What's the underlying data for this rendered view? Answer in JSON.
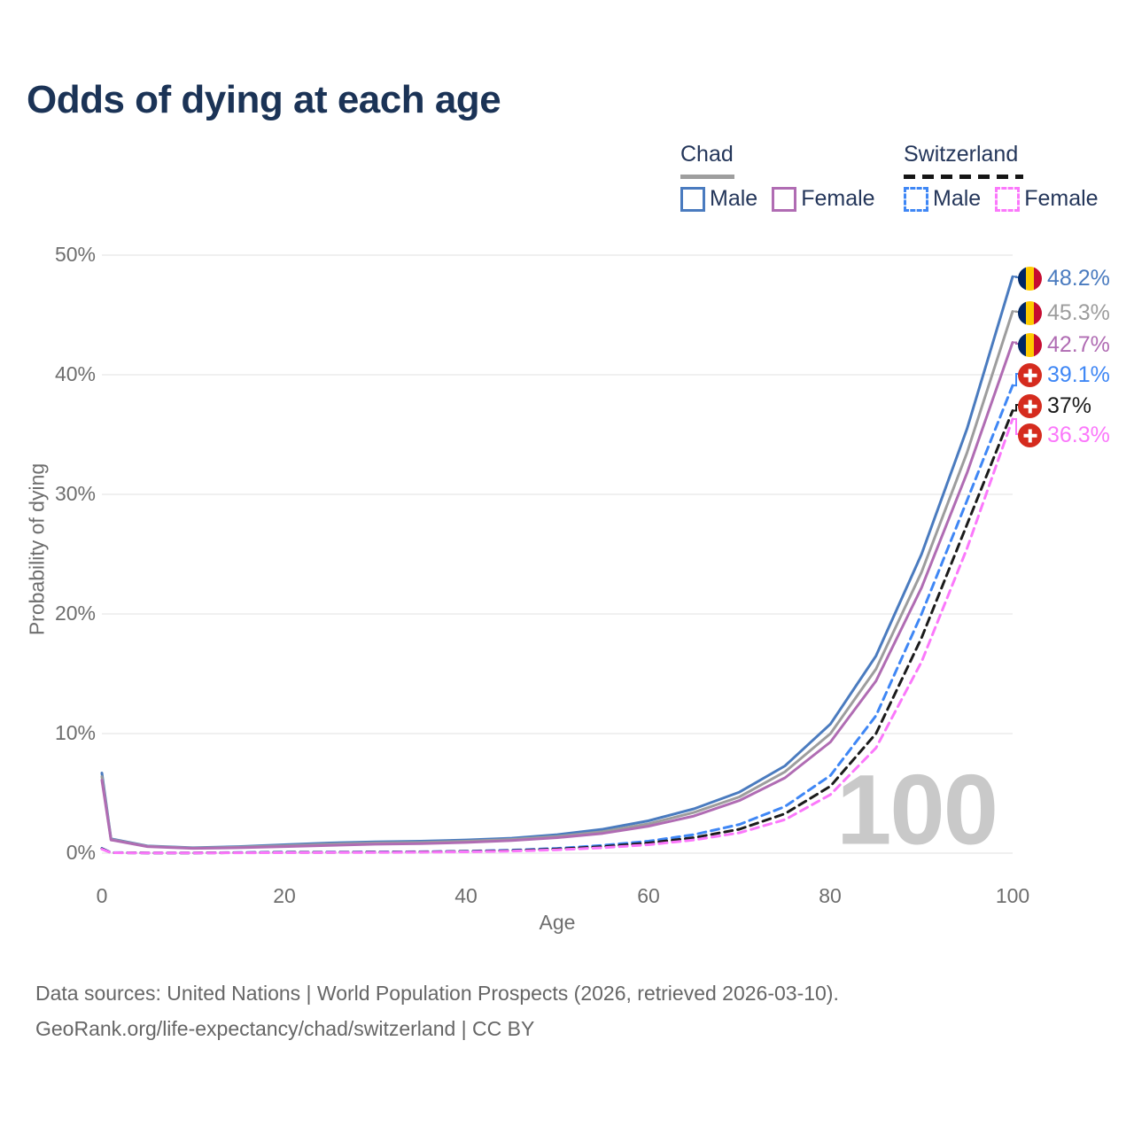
{
  "title": "Odds of dying at each age",
  "legend": {
    "groups": [
      {
        "label": "Chad",
        "line_style": "solid",
        "underline_color": "#9e9e9e",
        "items": [
          {
            "label": "Male",
            "color": "#4a7bbf",
            "dashed": false
          },
          {
            "label": "Female",
            "color": "#b06cb3",
            "dashed": false
          }
        ]
      },
      {
        "label": "Switzerland",
        "line_style": "dashed",
        "underline_color": "#151515",
        "items": [
          {
            "label": "Male",
            "color": "#3f87f5",
            "dashed": true
          },
          {
            "label": "Female",
            "color": "#fb78fb",
            "dashed": true
          }
        ]
      }
    ]
  },
  "chart_data": {
    "type": "line",
    "title": "Odds of dying at each age",
    "xlabel": "Age",
    "ylabel": "Probability of dying",
    "xlim": [
      0,
      100
    ],
    "ylim": [
      0,
      50
    ],
    "x_ticks": [
      "0",
      "20",
      "40",
      "60",
      "80",
      "100"
    ],
    "y_ticks_top_to_bottom": [
      "50%",
      "40%",
      "30%",
      "20%",
      "10%",
      "0%"
    ],
    "grid": "horizontal",
    "legend_position": "top-right",
    "watermark": "100",
    "x": [
      0,
      1,
      5,
      10,
      15,
      20,
      25,
      30,
      35,
      40,
      45,
      50,
      55,
      60,
      65,
      70,
      75,
      80,
      85,
      90,
      95,
      100
    ],
    "series": [
      {
        "name": "Chad Male",
        "color": "#4a7bbf",
        "dashed": false,
        "values": [
          6.7,
          1.2,
          0.6,
          0.45,
          0.55,
          0.7,
          0.85,
          0.95,
          1.0,
          1.1,
          1.25,
          1.55,
          2.0,
          2.7,
          3.7,
          5.1,
          7.3,
          10.8,
          16.5,
          25.0,
          35.5,
          48.2
        ],
        "end_value_pct": 48.2
      },
      {
        "name": "Chad Both sexes",
        "color": "#9d9d9d",
        "dashed": false,
        "values": [
          6.4,
          1.15,
          0.58,
          0.42,
          0.5,
          0.62,
          0.75,
          0.85,
          0.9,
          1.0,
          1.15,
          1.4,
          1.8,
          2.45,
          3.4,
          4.7,
          6.8,
          10.0,
          15.4,
          23.5,
          33.5,
          45.3
        ],
        "end_value_pct": 45.3
      },
      {
        "name": "Chad Female",
        "color": "#b06cb3",
        "dashed": false,
        "values": [
          6.1,
          1.1,
          0.55,
          0.4,
          0.45,
          0.55,
          0.65,
          0.75,
          0.8,
          0.9,
          1.05,
          1.3,
          1.65,
          2.25,
          3.1,
          4.4,
          6.3,
          9.3,
          14.4,
          22.2,
          31.8,
          42.7
        ],
        "end_value_pct": 42.7
      },
      {
        "name": "Switzerland Male",
        "color": "#3f87f5",
        "dashed": true,
        "values": [
          0.4,
          0.05,
          0.02,
          0.02,
          0.05,
          0.08,
          0.09,
          0.1,
          0.12,
          0.16,
          0.25,
          0.4,
          0.65,
          1.0,
          1.55,
          2.4,
          3.9,
          6.5,
          11.5,
          20.0,
          29.5,
          39.1
        ],
        "end_value_pct": 39.1
      },
      {
        "name": "Switzerland Both sexes",
        "color": "#1b1b1b",
        "dashed": true,
        "values": [
          0.37,
          0.04,
          0.02,
          0.02,
          0.04,
          0.06,
          0.07,
          0.08,
          0.1,
          0.14,
          0.21,
          0.34,
          0.55,
          0.85,
          1.3,
          2.0,
          3.3,
          5.6,
          10.0,
          18.0,
          27.5,
          37.0
        ],
        "end_value_pct": 37.0
      },
      {
        "name": "Switzerland Female",
        "color": "#fb78fb",
        "dashed": true,
        "values": [
          0.33,
          0.04,
          0.015,
          0.015,
          0.03,
          0.04,
          0.05,
          0.06,
          0.08,
          0.11,
          0.17,
          0.28,
          0.45,
          0.7,
          1.1,
          1.7,
          2.8,
          4.9,
          8.8,
          16.0,
          25.5,
          36.3
        ],
        "end_value_pct": 36.3
      }
    ]
  },
  "end_labels": [
    {
      "value": "48.2%",
      "color": "#4a7bbf",
      "flag": "chad"
    },
    {
      "value": "45.3%",
      "color": "#9d9d9d",
      "flag": "chad"
    },
    {
      "value": "42.7%",
      "color": "#b06cb3",
      "flag": "chad"
    },
    {
      "value": "39.1%",
      "color": "#3f87f5",
      "flag": "swiss"
    },
    {
      "value": "37%",
      "color": "#1b1b1b",
      "flag": "swiss"
    },
    {
      "value": "36.3%",
      "color": "#fb78fb",
      "flag": "swiss"
    }
  ],
  "footer": {
    "line1": "Data sources: United Nations | World Population Prospects (2026, retrieved 2026-03-10).",
    "line2": "GeoRank.org/life-expectancy/chad/switzerland | CC BY"
  }
}
